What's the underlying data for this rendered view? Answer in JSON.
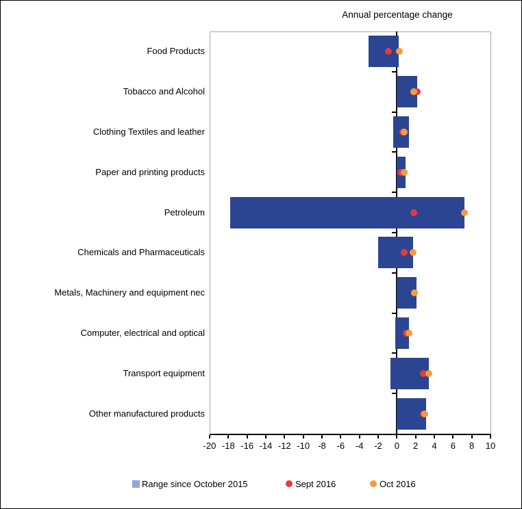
{
  "chart_data": {
    "type": "bar",
    "subtype": "horizontal-range-bars-with-points",
    "title": "Annual percentage change",
    "categories": [
      "Food Products",
      "Tobacco and Alcohol",
      "Clothing Textiles and leather",
      "Paper and printing products",
      "Petroleum",
      "Chemicals and Pharmaceuticals",
      "Metals, Machinery and equipment nec",
      "Computer, electrical and optical",
      "Transport equipment",
      "Other manufactured products"
    ],
    "series": [
      {
        "name": "Range since October 2015",
        "type": "range",
        "low": [
          -3.0,
          0.0,
          -0.4,
          0.0,
          -17.8,
          -2.0,
          0.0,
          -0.2,
          -0.7,
          0.0
        ],
        "high": [
          0.2,
          2.2,
          1.3,
          0.9,
          7.2,
          1.7,
          2.1,
          1.3,
          3.4,
          3.1
        ]
      },
      {
        "name": "Sept 2016",
        "type": "point",
        "values": [
          -0.9,
          2.2,
          0.6,
          0.4,
          1.8,
          0.8,
          1.9,
          1.0,
          2.8,
          2.8
        ]
      },
      {
        "name": "Oct 2016",
        "type": "point",
        "values": [
          0.3,
          1.8,
          0.8,
          0.8,
          7.2,
          1.7,
          1.9,
          1.3,
          3.4,
          3.0
        ]
      }
    ],
    "xlim": [
      -20,
      10
    ],
    "xticks": [
      -20,
      -18,
      -16,
      -14,
      -12,
      -10,
      -8,
      -6,
      -4,
      -2,
      0,
      2,
      4,
      6,
      8,
      10
    ],
    "xtick_labels": [
      "-20",
      "-18",
      "-16",
      "-14",
      "-12",
      "-10",
      "-8",
      "-6",
      "-4",
      "-2",
      "0",
      "2",
      "4",
      "6",
      "8",
      "10"
    ],
    "grid": false,
    "legend_position": "bottom",
    "colors": {
      "bar": "#2b4593",
      "sept_point": "#e23b3e",
      "oct_point": "#f59c3c",
      "legend_range_swatch": "#95a5d6",
      "plot_border": "#a6a6a6",
      "axis": "#000000"
    }
  },
  "legend": {
    "items": [
      {
        "label": "Range since October 2015",
        "marker": "square",
        "color": "#95a5d6"
      },
      {
        "label": "Sept 2016",
        "marker": "circle",
        "color": "#e23b3e"
      },
      {
        "label": "Oct 2016",
        "marker": "circle",
        "color": "#f59c3c"
      }
    ]
  }
}
